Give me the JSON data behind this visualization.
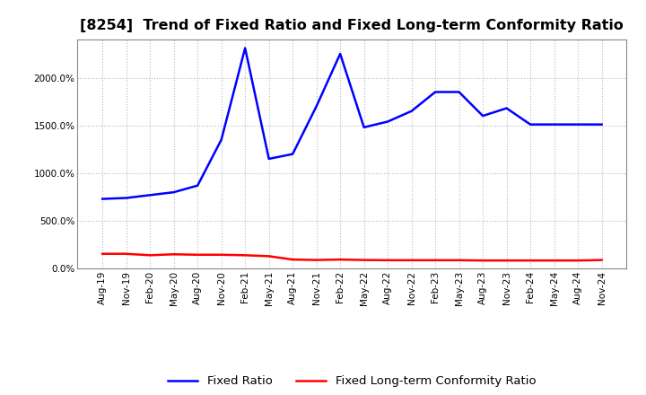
{
  "title": "[8254]  Trend of Fixed Ratio and Fixed Long-term Conformity Ratio",
  "x_labels": [
    "Aug-19",
    "Nov-19",
    "Feb-20",
    "May-20",
    "Aug-20",
    "Nov-20",
    "Feb-21",
    "May-21",
    "Aug-21",
    "Nov-21",
    "Feb-22",
    "May-22",
    "Aug-22",
    "Nov-22",
    "Feb-23",
    "May-23",
    "Aug-23",
    "Nov-23",
    "Feb-24",
    "May-24",
    "Aug-24",
    "Nov-24"
  ],
  "fixed_ratio": [
    730,
    740,
    770,
    800,
    870,
    1350,
    2310,
    1150,
    1200,
    1700,
    2250,
    1480,
    1540,
    1650,
    1850,
    1850,
    1600,
    1680,
    1510,
    1510,
    1510,
    1510
  ],
  "fixed_lt_ratio": [
    155,
    155,
    140,
    150,
    145,
    145,
    140,
    130,
    95,
    90,
    95,
    90,
    88,
    88,
    88,
    88,
    85,
    85,
    85,
    85,
    85,
    90
  ],
  "fixed_ratio_color": "#0000FF",
  "fixed_lt_ratio_color": "#FF0000",
  "background_color": "#FFFFFF",
  "grid_color": "#BBBBBB",
  "yticks": [
    0,
    500,
    1000,
    1500,
    2000
  ],
  "ylim": [
    0,
    2400
  ],
  "legend_labels": [
    "Fixed Ratio",
    "Fixed Long-term Conformity Ratio"
  ],
  "title_fontsize": 11.5,
  "tick_fontsize": 7.5,
  "legend_fontsize": 9.5
}
